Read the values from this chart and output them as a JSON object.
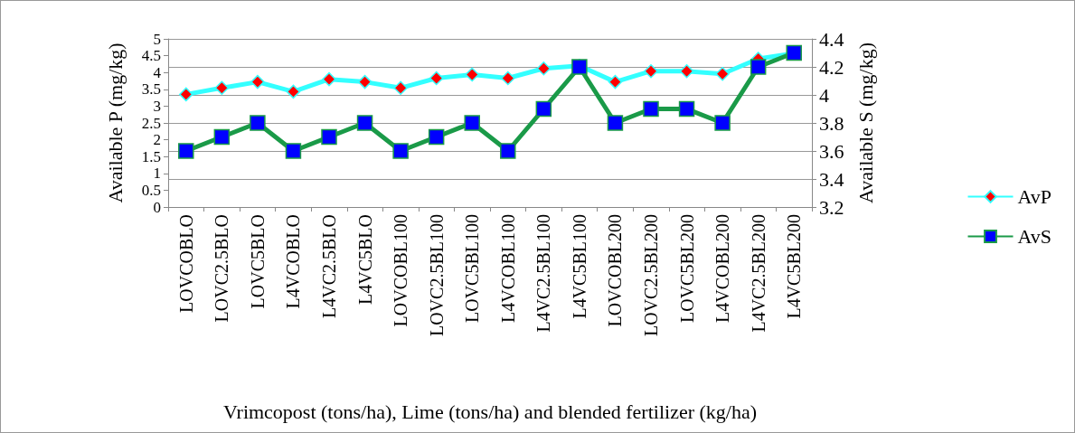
{
  "chart_data": {
    "type": "line",
    "xlabel": "Vrimcopost (tons/ha), Lime (tons/ha) and blended fertilizer (kg/ha)",
    "ylabel": "Available P (mg/kg)",
    "y2label": "Available S (mg/kg)",
    "categories": [
      "LOVCOBLO",
      "LOVC2.5BLO",
      "LOVC5BLO",
      "L4VCOBLO",
      "L4VC2.5BLO",
      "L4VC5BLO",
      "LOVCOBL100",
      "LOVC2.5BL100",
      "LOVC5BL100",
      "L4VCOBL100",
      "L4VC2.5BL100",
      "L4VC5BL100",
      "LOVCOBL200",
      "LOVC2.5BL200",
      "LOVC5BL200",
      "L4VCOBL200",
      "L4VC2.5BL200",
      "L4VC5BL200"
    ],
    "series": [
      {
        "name": "AvP",
        "color": "#33ffff",
        "marker": "diamond",
        "values": [
          3.35,
          3.54,
          3.72,
          3.43,
          3.8,
          3.72,
          3.54,
          3.83,
          3.94,
          3.83,
          4.12,
          4.2,
          3.72,
          4.04,
          4.04,
          3.96,
          4.41,
          4.57
        ]
      },
      {
        "name": "AvS",
        "color": "#1a9a48",
        "marker": "square",
        "axis": "y2",
        "values": [
          3.6,
          3.7,
          3.8,
          3.6,
          3.7,
          3.8,
          3.6,
          3.7,
          3.8,
          3.6,
          3.9,
          4.2,
          3.8,
          3.9,
          3.9,
          3.8,
          4.2,
          4.3
        ]
      }
    ],
    "ylim": [
      0,
      5
    ],
    "yticks": [
      0,
      0.5,
      1,
      1.5,
      2,
      2.5,
      3,
      3.5,
      4,
      4.5,
      5
    ],
    "y2lim": [
      3.2,
      4.4
    ],
    "y2ticks": [
      3.2,
      3.4,
      3.6,
      3.8,
      4,
      4.2,
      4.4
    ],
    "grid": "y2",
    "legend": "right"
  }
}
